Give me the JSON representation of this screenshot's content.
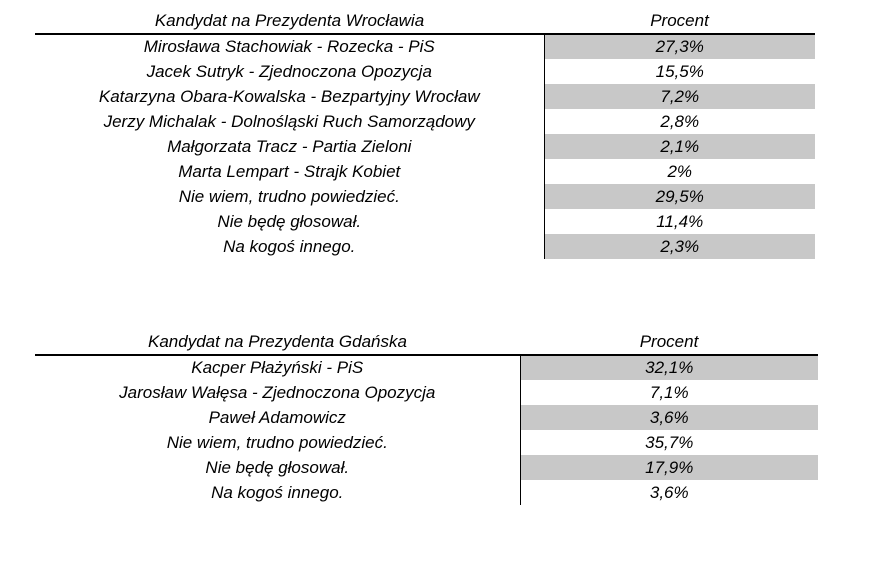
{
  "colors": {
    "shade": "#c8c8c8",
    "line": "#000000"
  },
  "tables": [
    {
      "header": {
        "candidate": "Kandydat na Prezydenta Wrocławia",
        "percent": "Procent"
      },
      "rows": [
        {
          "candidate": "Mirosława Stachowiak - Rozecka - PiS",
          "percent": "27,3%"
        },
        {
          "candidate": "Jacek Sutryk - Zjednoczona Opozycja",
          "percent": "15,5%"
        },
        {
          "candidate": "Katarzyna Obara-Kowalska - Bezpartyjny Wrocław",
          "percent": "7,2%"
        },
        {
          "candidate": "Jerzy Michalak - Dolnośląski Ruch Samorządowy",
          "percent": "2,8%"
        },
        {
          "candidate": "Małgorzata Tracz - Partia Zieloni",
          "percent": "2,1%"
        },
        {
          "candidate": "Marta Lempart - Strajk Kobiet",
          "percent": "2%"
        },
        {
          "candidate": "Nie wiem, trudno powiedzieć.",
          "percent": "29,5%"
        },
        {
          "candidate": "Nie będę głosował.",
          "percent": "11,4%"
        },
        {
          "candidate": "Na kogoś innego.",
          "percent": "2,3%"
        }
      ]
    },
    {
      "header": {
        "candidate": "Kandydat na Prezydenta Gdańska",
        "percent": "Procent"
      },
      "rows": [
        {
          "candidate": "Kacper Płażyński - PiS",
          "percent": "32,1%"
        },
        {
          "candidate": "Jarosław Wałęsa - Zjednoczona Opozycja",
          "percent": "7,1%"
        },
        {
          "candidate": "Paweł Adamowicz",
          "percent": "3,6%"
        },
        {
          "candidate": "Nie wiem, trudno powiedzieć.",
          "percent": "35,7%"
        },
        {
          "candidate": "Nie będę głosował.",
          "percent": "17,9%"
        },
        {
          "candidate": "Na kogoś innego.",
          "percent": "3,6%"
        }
      ]
    }
  ],
  "chart_data": [
    {
      "type": "table",
      "title": "Kandydat na Prezydenta Wrocławia",
      "columns": [
        "Kandydat na Prezydenta Wrocławia",
        "Procent"
      ],
      "categories": [
        "Mirosława Stachowiak - Rozecka - PiS",
        "Jacek Sutryk - Zjednoczona Opozycja",
        "Katarzyna Obara-Kowalska - Bezpartyjny Wrocław",
        "Jerzy Michalak - Dolnośląski Ruch Samorządowy",
        "Małgorzata Tracz - Partia Zieloni",
        "Marta Lempart - Strajk Kobiet",
        "Nie wiem, trudno powiedzieć.",
        "Nie będę głosował.",
        "Na kogoś innego."
      ],
      "values": [
        27.3,
        15.5,
        7.2,
        2.8,
        2.1,
        2,
        29.5,
        11.4,
        2.3
      ],
      "value_unit": "%"
    },
    {
      "type": "table",
      "title": "Kandydat na Prezydenta Gdańska",
      "columns": [
        "Kandydat na Prezydenta Gdańska",
        "Procent"
      ],
      "categories": [
        "Kacper Płażyński - PiS",
        "Jarosław Wałęsa - Zjednoczona Opozycja",
        "Paweł Adamowicz",
        "Nie wiem, trudno powiedzieć.",
        "Nie będę głosował.",
        "Na kogoś innego."
      ],
      "values": [
        32.1,
        7.1,
        3.6,
        35.7,
        17.9,
        3.6
      ],
      "value_unit": "%"
    }
  ]
}
